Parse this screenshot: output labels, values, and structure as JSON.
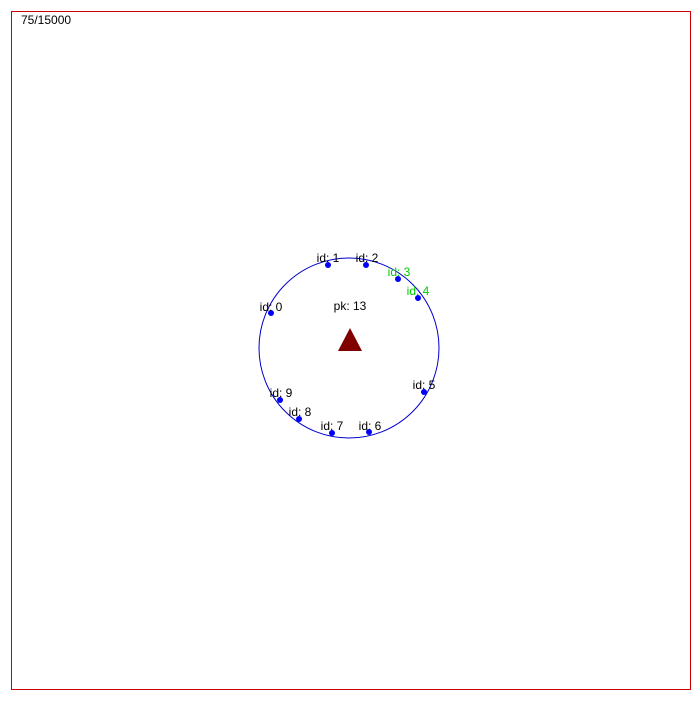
{
  "hud": {
    "step_counter": "75/15000"
  },
  "scene": {
    "border_color": "#cc0000",
    "ring_color": "#0000cc",
    "agent_dot_color": "#0000ff",
    "normal_label_color": "#000000",
    "highlight_label_color": "#00cc00",
    "target_color": "#800000",
    "pk_label": "pk: 13",
    "agents": [
      {
        "label": "id: 0",
        "highlighted": false
      },
      {
        "label": "id: 1",
        "highlighted": false
      },
      {
        "label": "id: 2",
        "highlighted": false
      },
      {
        "label": "id: 3",
        "highlighted": true
      },
      {
        "label": "id: 4",
        "highlighted": true
      },
      {
        "label": "id: 5",
        "highlighted": false
      },
      {
        "label": "id: 6",
        "highlighted": false
      },
      {
        "label": "id: 7",
        "highlighted": false
      },
      {
        "label": "id: 8",
        "highlighted": false
      },
      {
        "label": "id: 9",
        "highlighted": false
      }
    ]
  }
}
